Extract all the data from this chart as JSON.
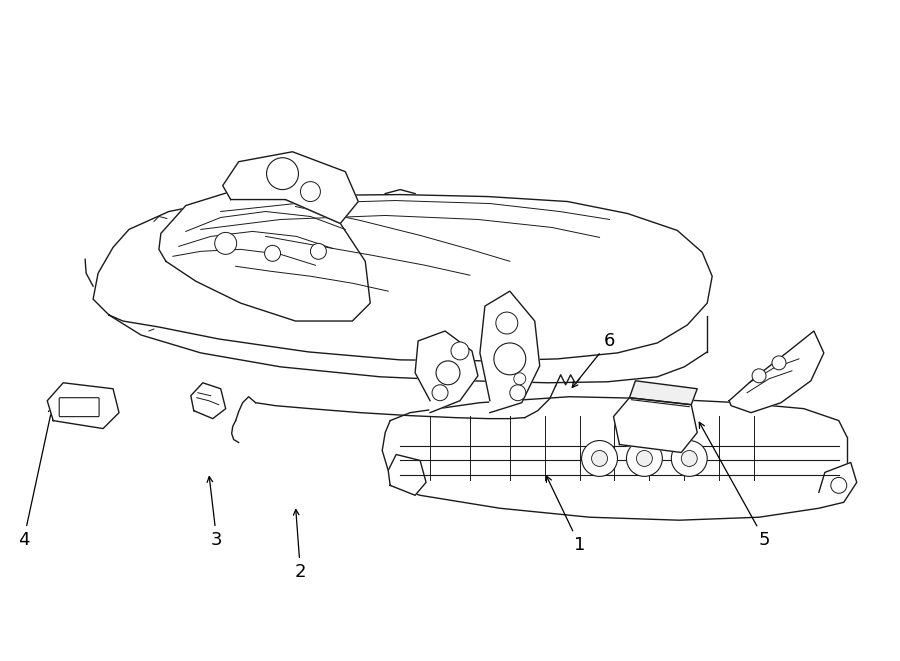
{
  "bg_color": "#ffffff",
  "line_color": "#1a1a1a",
  "fig_width": 9.0,
  "fig_height": 6.61,
  "dpi": 100,
  "lw": 1.0,
  "label_fs": 13
}
